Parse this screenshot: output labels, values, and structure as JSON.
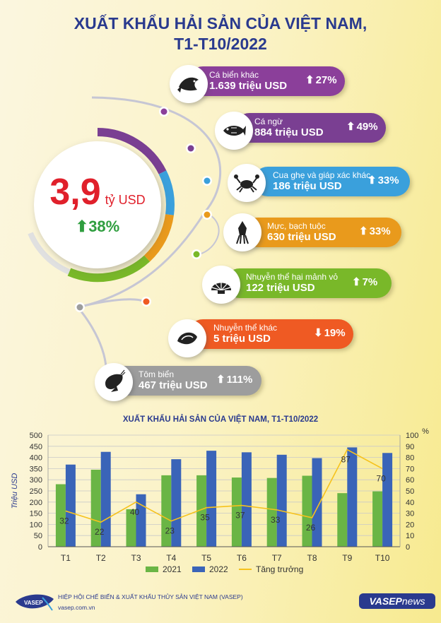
{
  "title": {
    "line1": "XUẤT KHẨU HẢI SẢN CỦA VIỆT NAM,",
    "line2": "T1-T10/2022"
  },
  "total": {
    "value": "3,9",
    "unit": "tỷ USD",
    "change": "38%",
    "direction": "up",
    "colors": {
      "value": "#e0202b",
      "change": "#2f9e3f"
    }
  },
  "categories": [
    {
      "name": "Cá biển khác",
      "value": "1.639 triệu USD",
      "change": "27%",
      "direction": "up",
      "color": "#8b3f9a",
      "icon": "fish-icon"
    },
    {
      "name": "Cá ngừ",
      "value": "884 triệu USD",
      "change": "49%",
      "direction": "up",
      "color": "#7a3f92",
      "icon": "tuna-icon"
    },
    {
      "name": "Cua ghẹ và giáp xác khác",
      "value": "186 triệu USD",
      "change": "33%",
      "direction": "up",
      "color": "#3aa0dc",
      "icon": "crab-icon"
    },
    {
      "name": "Mực, bạch tuộc",
      "value": "630 triệu USD",
      "change": "33%",
      "direction": "up",
      "color": "#e99a1c",
      "icon": "squid-icon"
    },
    {
      "name": "Nhuyễn thể hai mảnh vỏ",
      "value": "122 triệu USD",
      "change": "7%",
      "direction": "up",
      "color": "#79b829",
      "icon": "shell-icon"
    },
    {
      "name": "Nhuyễn thể khác",
      "value": "5 triệu USD",
      "change": "19%",
      "direction": "down",
      "color": "#ef5a23",
      "icon": "conch-icon"
    },
    {
      "name": "Tôm biển",
      "value": "467 triệu USD",
      "change": "111%",
      "direction": "up",
      "color": "#9d9d9d",
      "icon": "shrimp-icon"
    }
  ],
  "chart_data": {
    "type": "bar",
    "title": "XUẤT KHẨU HẢI SẢN CỦA VIỆT NAM, T1-T10/2022",
    "categories": [
      "T1",
      "T2",
      "T3",
      "T4",
      "T5",
      "T6",
      "T7",
      "T8",
      "T9",
      "T10"
    ],
    "series": [
      {
        "name": "2021",
        "type": "bar",
        "axis": "left",
        "color": "#6ab545",
        "values": [
          280,
          345,
          168,
          320,
          320,
          310,
          308,
          318,
          240,
          248
        ]
      },
      {
        "name": "2022",
        "type": "bar",
        "axis": "left",
        "color": "#3a64b8",
        "values": [
          368,
          425,
          235,
          392,
          430,
          423,
          412,
          397,
          445,
          420
        ]
      },
      {
        "name": "Tăng trưởng",
        "type": "line",
        "axis": "right",
        "color": "#f6c21c",
        "values": [
          32,
          22,
          40,
          23,
          35,
          37,
          33,
          26,
          87,
          70
        ]
      }
    ],
    "ylabel": "Triệu USD",
    "ylim": [
      0,
      500
    ],
    "yticks": [
      0,
      50,
      100,
      150,
      200,
      250,
      300,
      350,
      400,
      450,
      500
    ],
    "y2label": "%",
    "y2lim": [
      0,
      100
    ],
    "y2ticks": [
      0,
      10,
      20,
      30,
      40,
      50,
      60,
      70,
      80,
      90,
      100
    ],
    "grid": "horizontal",
    "legend": "bottom"
  },
  "footer": {
    "org": "HIỆP HỘI CHẾ BIẾN & XUẤT KHẨU THỦY SẢN VIỆT NAM (VASEP)",
    "website": "vasep.com.vn",
    "logo_text": "VASEP",
    "brand": "VASEP",
    "brand_suffix": "news"
  }
}
